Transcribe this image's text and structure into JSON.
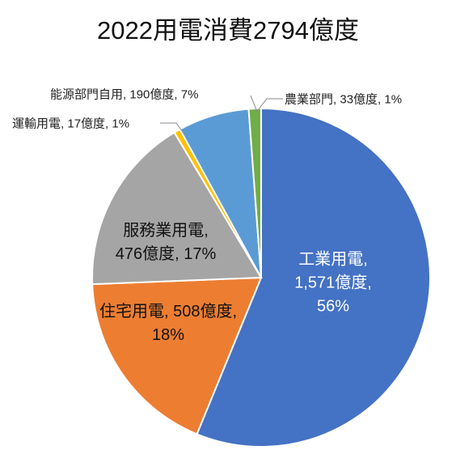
{
  "chart_data": {
    "type": "pie",
    "title": "2022用電消費2794億度",
    "categories": [
      "工業用電",
      "住宅用電",
      "服務業用電",
      "運輸用電",
      "能源部門自用",
      "農業部門"
    ],
    "values": [
      1571,
      508,
      476,
      17,
      190,
      33
    ],
    "value_labels": [
      "1,571億度",
      "508億度",
      "476億度",
      "17億度",
      "190億度",
      "33億度"
    ],
    "percents": [
      56,
      18,
      17,
      1,
      7,
      1
    ],
    "percent_labels": [
      "56%",
      "18%",
      "17%",
      "1%",
      "7%",
      "1%"
    ],
    "label_separator": ",",
    "colors": [
      "#4472c4",
      "#ed7d31",
      "#a5a5a5",
      "#ffc000",
      "#5b9bd5",
      "#70ad47"
    ]
  }
}
